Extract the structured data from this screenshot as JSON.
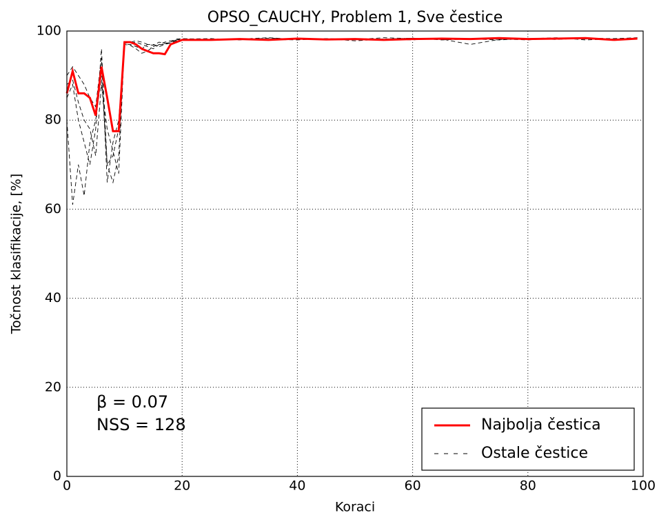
{
  "chart_data": {
    "type": "line",
    "title": "OPSO_CAUCHY, Problem 1, Sve čestice",
    "xlabel": "Koraci",
    "ylabel": "Točnost klasifikacije, [%]",
    "annotations": [
      "β = 0.07",
      "NSS = 128"
    ],
    "x": [
      0,
      1,
      2,
      3,
      4,
      5,
      6,
      7,
      8,
      9,
      10,
      11,
      12,
      13,
      14,
      15,
      16,
      17,
      18,
      19,
      20,
      25,
      30,
      35,
      40,
      45,
      50,
      55,
      60,
      65,
      70,
      75,
      80,
      85,
      90,
      95,
      99
    ],
    "series": [
      {
        "name": "Najbolja čestica",
        "color": "#ff0000",
        "values": [
          86,
          91,
          86,
          86,
          85,
          81,
          92,
          85,
          77.5,
          77.5,
          97.5,
          97.5,
          97,
          96,
          95.5,
          95,
          95,
          94.8,
          97,
          97.5,
          98,
          98,
          98.2,
          98,
          98.3,
          98.1,
          98.2,
          98,
          98.2,
          98.3,
          98.2,
          98.4,
          98.2,
          98.3,
          98.4,
          98,
          98.3
        ]
      },
      {
        "name": "Ostale čestice",
        "color": "#000000",
        "lines": [
          [
            85,
            88,
            80,
            75,
            70,
            78,
            96,
            70,
            72,
            78,
            97,
            97,
            96.5,
            96,
            97,
            97,
            96.5,
            97,
            97.5,
            98,
            98,
            98,
            98.2,
            98.1,
            98,
            98.3,
            98.1,
            98.2,
            98.4,
            98,
            98.2,
            98.3,
            98.1,
            98.2,
            98.4,
            98.3,
            98.5
          ],
          [
            90,
            92,
            90,
            88,
            85,
            83,
            94,
            66,
            75,
            80,
            97.5,
            97.3,
            97.5,
            97,
            96.5,
            96,
            97,
            97.5,
            97.8,
            98,
            98.2,
            98.3,
            98,
            98.4,
            98.2,
            98.1,
            98.3,
            98,
            98.4,
            98.2,
            97,
            98.1,
            98.3,
            98.5,
            98,
            98.2,
            98.4
          ],
          [
            80,
            61,
            70,
            63,
            75,
            80,
            90,
            70,
            66,
            72,
            97,
            96.8,
            96,
            95,
            95.5,
            96.5,
            97,
            97,
            97.3,
            97.8,
            98,
            98,
            98.2,
            98.5,
            98.1,
            98.3,
            97.8,
            98.2,
            98,
            98.4,
            98.2,
            98,
            98.3,
            98.1,
            98.4,
            98.2,
            98.5
          ],
          [
            88,
            89,
            84,
            80,
            78,
            72,
            88,
            78,
            73,
            68,
            97.2,
            97.5,
            97.8,
            97.5,
            97,
            96.8,
            97.5,
            97.2,
            97.5,
            98.2,
            98.3,
            98.1,
            98.3,
            98,
            98.4,
            98.2,
            98.1,
            98.5,
            98.3,
            98.1,
            98.3,
            98.2,
            98,
            98.4,
            98.2,
            98.1,
            98.3
          ]
        ]
      }
    ],
    "xlim": [
      0,
      100
    ],
    "xticks": [
      0,
      20,
      40,
      60,
      80,
      100
    ],
    "ylim": [
      0,
      100
    ],
    "yticks": [
      0,
      20,
      40,
      60,
      80,
      100
    ],
    "grid": true,
    "legend": "lower right"
  }
}
